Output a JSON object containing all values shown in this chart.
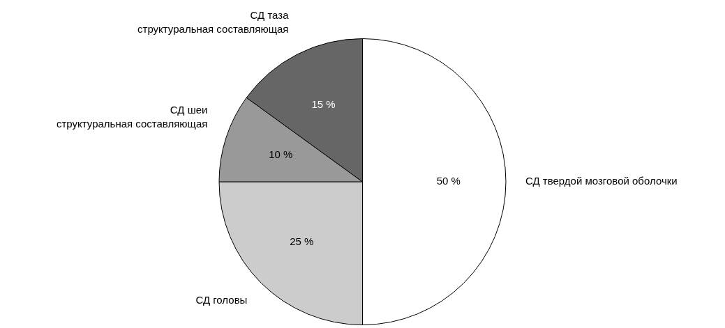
{
  "chart_data": {
    "type": "pie",
    "categories": [
      "СД твердой мозговой оболочки",
      "СД головы",
      "СД шеи\nструктуральная составляющая",
      "СД таза\nструктуральная составляющая"
    ],
    "values": [
      50,
      25,
      10,
      15
    ],
    "colors": [
      "#ffffff",
      "#cccccc",
      "#999999",
      "#666666"
    ],
    "value_labels": [
      "50 %",
      "25 %",
      "10 %",
      "15 %"
    ],
    "legend": false
  }
}
